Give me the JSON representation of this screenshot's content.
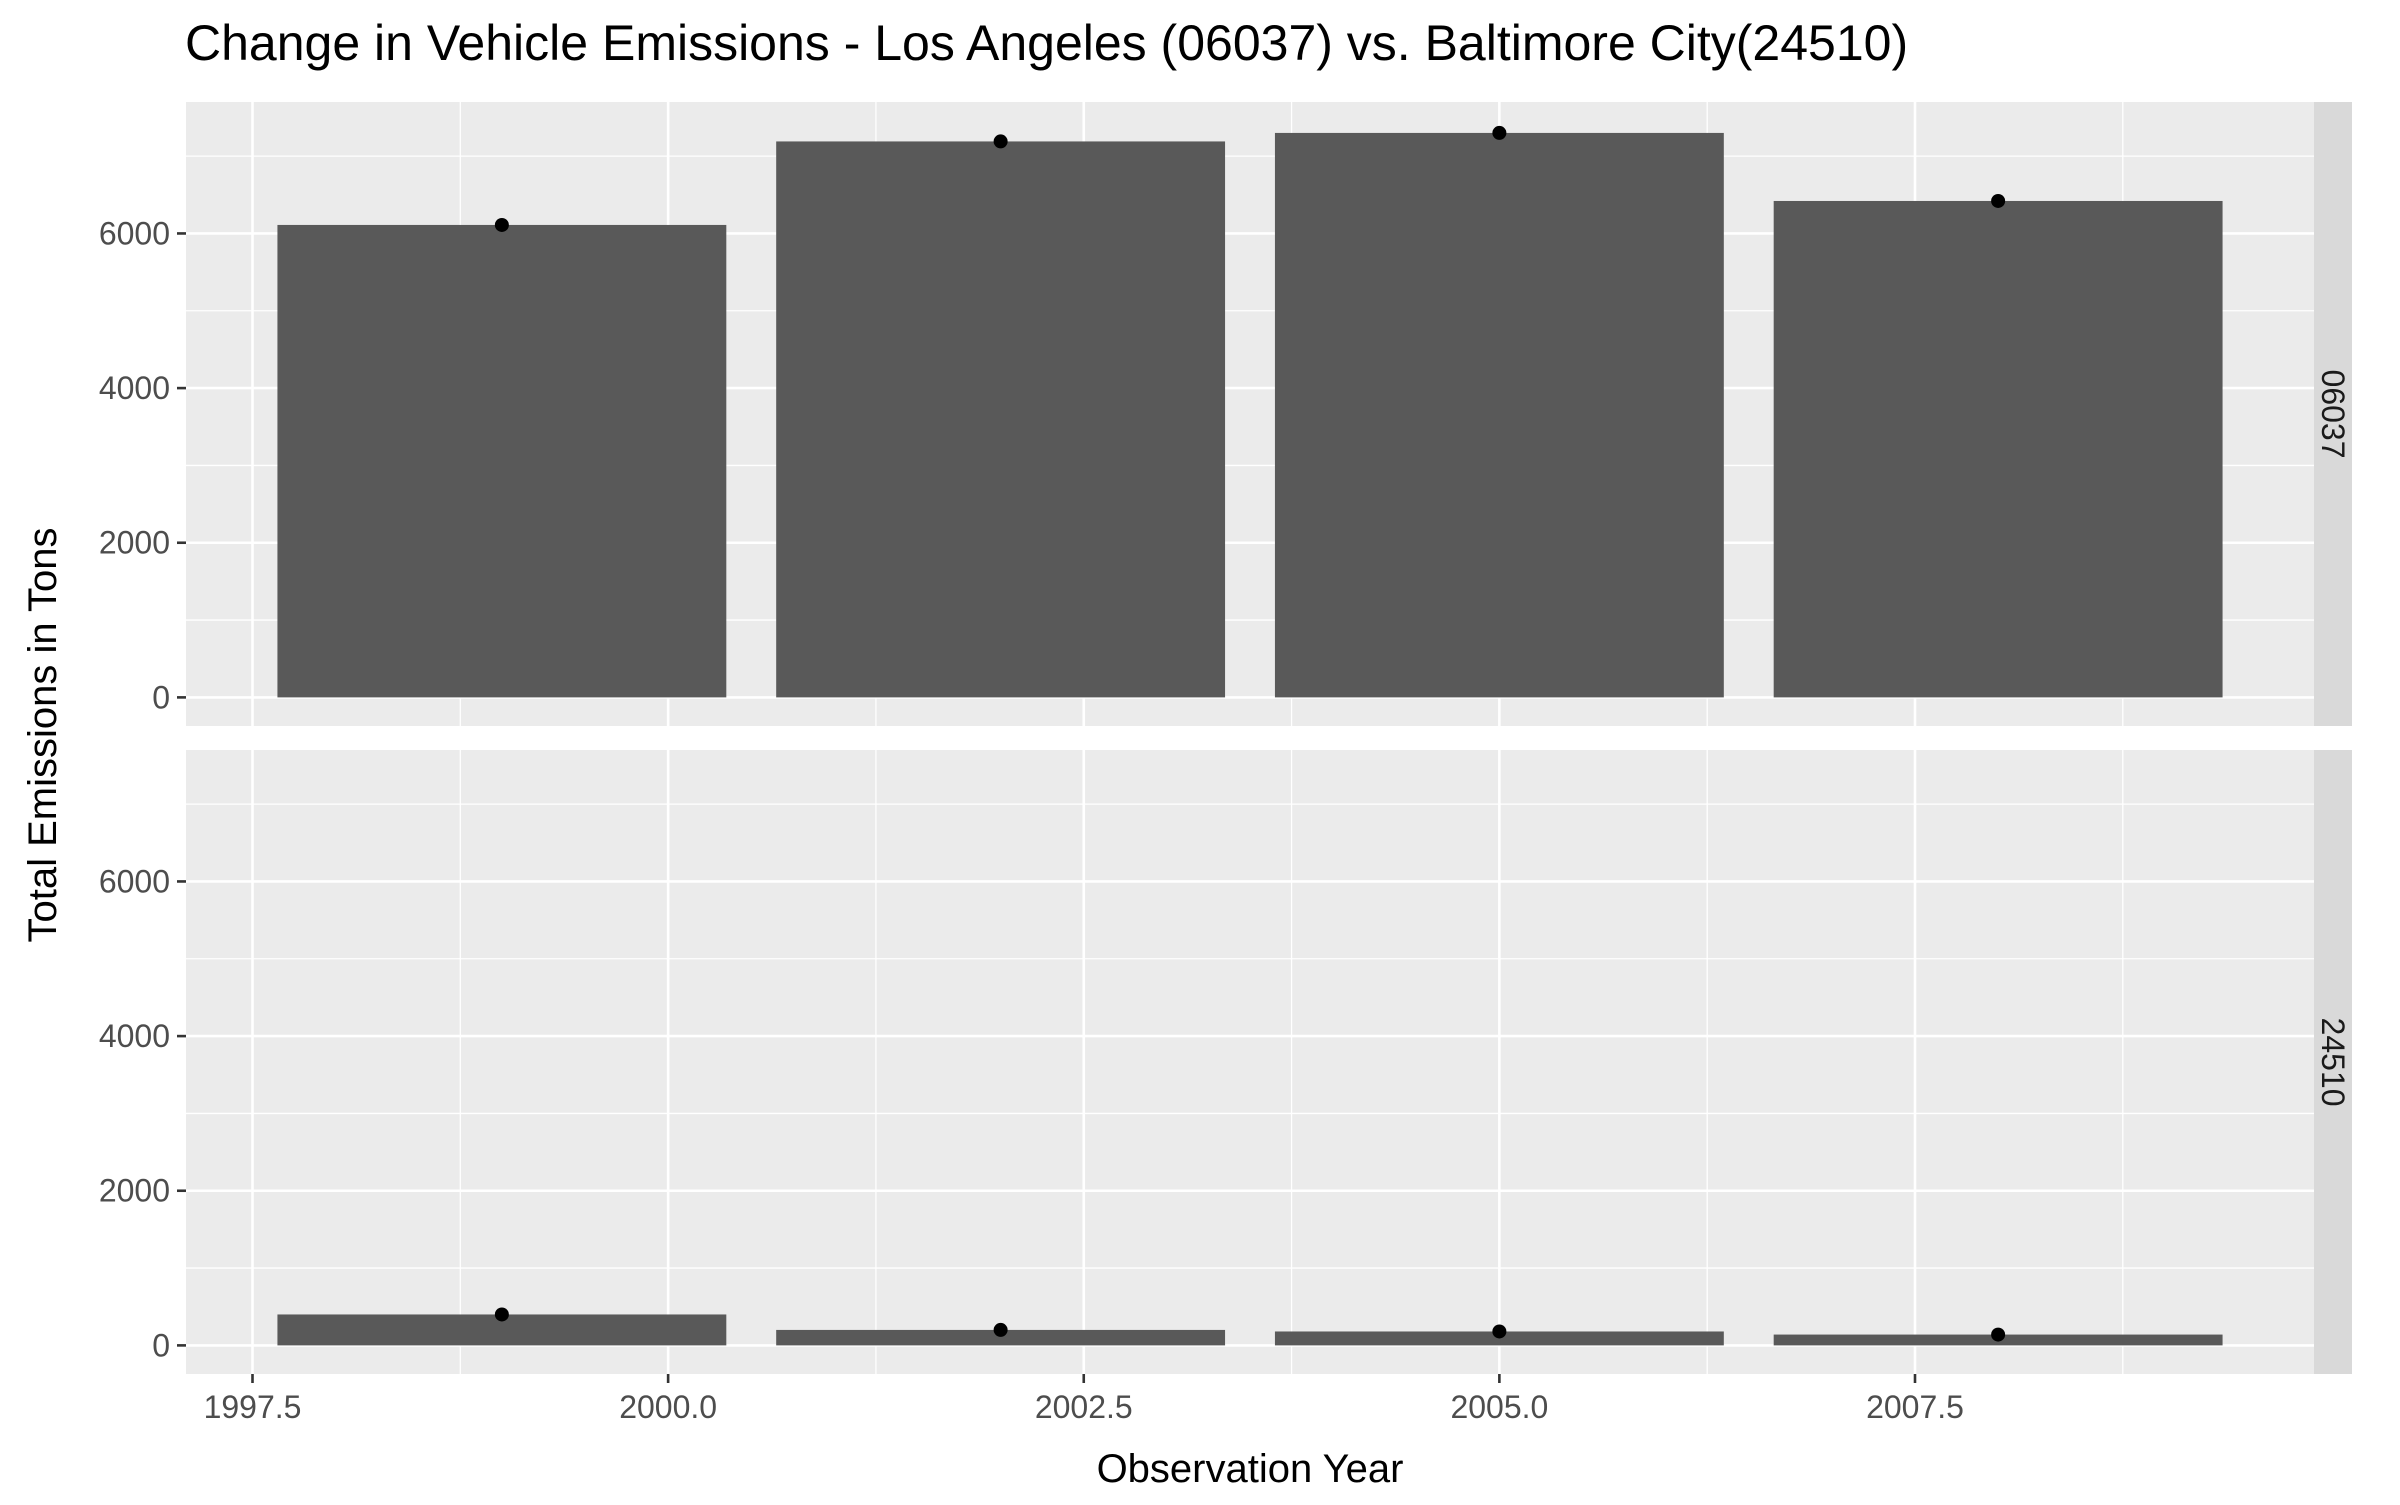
{
  "chart_data": {
    "type": "bar",
    "title": "Change in Vehicle Emissions - Los Angeles (06037) vs. Baltimore City(24510)",
    "xlabel": "Observation Year",
    "ylabel": "Total Emissions in Tons",
    "x_ticks": [
      "1997.5",
      "2000.0",
      "2002.5",
      "2005.0",
      "2007.5"
    ],
    "y_ticks": [
      "0",
      "2000",
      "4000",
      "6000"
    ],
    "xlim": [
      1997.1,
      2009.9
    ],
    "ylim": [
      -370,
      7700
    ],
    "grid": true,
    "bar_color": "#595959",
    "point_color": "#000000",
    "panel_bg": "#ebebeb",
    "strip_bg": "#d9d9d9",
    "categories": [
      1999,
      2002,
      2005,
      2008
    ],
    "facets": [
      {
        "label": "06037",
        "values": [
          6110,
          7190,
          7300,
          6420
        ]
      },
      {
        "label": "24510",
        "values": [
          400,
          200,
          180,
          140
        ]
      }
    ]
  }
}
